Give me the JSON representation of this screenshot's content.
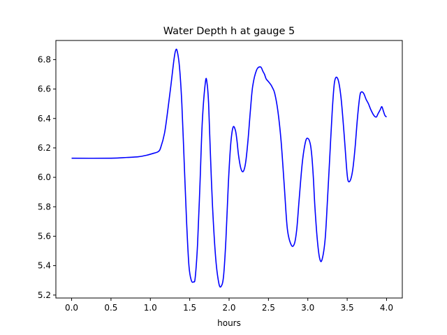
{
  "chart_data": {
    "type": "line",
    "title": "Water Depth h at gauge 5",
    "xlabel": "hours",
    "ylabel": "",
    "xlim": [
      -0.2,
      4.2
    ],
    "ylim": [
      5.18,
      6.93
    ],
    "xticks": [
      0.0,
      0.5,
      1.0,
      1.5,
      2.0,
      2.5,
      3.0,
      3.5,
      4.0
    ],
    "xtick_labels": [
      "0.0",
      "0.5",
      "1.0",
      "1.5",
      "2.0",
      "2.5",
      "3.0",
      "3.5",
      "4.0"
    ],
    "yticks": [
      5.2,
      5.4,
      5.6,
      5.8,
      6.0,
      6.2,
      6.4,
      6.6,
      6.8
    ],
    "ytick_labels": [
      "5.2",
      "5.4",
      "5.6",
      "5.8",
      "6.0",
      "6.2",
      "6.4",
      "6.6",
      "6.8"
    ],
    "grid": false,
    "series": [
      {
        "color": "#0000ff",
        "x": [
          0.0,
          0.5,
          0.7,
          0.85,
          0.95,
          1.05,
          1.1,
          1.13,
          1.18,
          1.22,
          1.26,
          1.3,
          1.32,
          1.34,
          1.37,
          1.4,
          1.43,
          1.46,
          1.49,
          1.52,
          1.55,
          1.57,
          1.6,
          1.63,
          1.66,
          1.7,
          1.72,
          1.74,
          1.76,
          1.79,
          1.83,
          1.87,
          1.9,
          1.93,
          1.96,
          1.99,
          2.02,
          2.05,
          2.08,
          2.1,
          2.12,
          2.15,
          2.18,
          2.21,
          2.24,
          2.27,
          2.3,
          2.35,
          2.4,
          2.43,
          2.45,
          2.47,
          2.5,
          2.53,
          2.55,
          2.58,
          2.62,
          2.66,
          2.7,
          2.74,
          2.79,
          2.83,
          2.86,
          2.89,
          2.93,
          2.97,
          3.0,
          3.03,
          3.05,
          3.07,
          3.09,
          3.12,
          3.15,
          3.18,
          3.22,
          3.25,
          3.28,
          3.31,
          3.34,
          3.38,
          3.42,
          3.46,
          3.49,
          3.51,
          3.54,
          3.57,
          3.6,
          3.63,
          3.66,
          3.68,
          3.71,
          3.74,
          3.77,
          3.8,
          3.84,
          3.87,
          3.89,
          3.92,
          3.94,
          3.96,
          3.98,
          4.0
        ],
        "y": [
          6.13,
          6.13,
          6.135,
          6.14,
          6.15,
          6.165,
          6.175,
          6.2,
          6.3,
          6.45,
          6.62,
          6.8,
          6.86,
          6.86,
          6.75,
          6.5,
          6.1,
          5.7,
          5.4,
          5.3,
          5.29,
          5.32,
          5.55,
          5.95,
          6.38,
          6.65,
          6.64,
          6.5,
          6.2,
          5.8,
          5.45,
          5.28,
          5.26,
          5.33,
          5.58,
          5.95,
          6.22,
          6.34,
          6.32,
          6.25,
          6.15,
          6.06,
          6.04,
          6.1,
          6.25,
          6.45,
          6.62,
          6.73,
          6.75,
          6.72,
          6.7,
          6.67,
          6.65,
          6.63,
          6.61,
          6.57,
          6.45,
          6.25,
          5.95,
          5.65,
          5.54,
          5.55,
          5.65,
          5.85,
          6.1,
          6.24,
          6.265,
          6.23,
          6.15,
          6.0,
          5.8,
          5.58,
          5.45,
          5.44,
          5.58,
          5.85,
          6.15,
          6.45,
          6.65,
          6.67,
          6.55,
          6.3,
          6.08,
          5.98,
          5.98,
          6.05,
          6.2,
          6.4,
          6.55,
          6.58,
          6.57,
          6.53,
          6.5,
          6.46,
          6.42,
          6.41,
          6.43,
          6.46,
          6.48,
          6.45,
          6.42,
          6.41
        ]
      }
    ]
  }
}
